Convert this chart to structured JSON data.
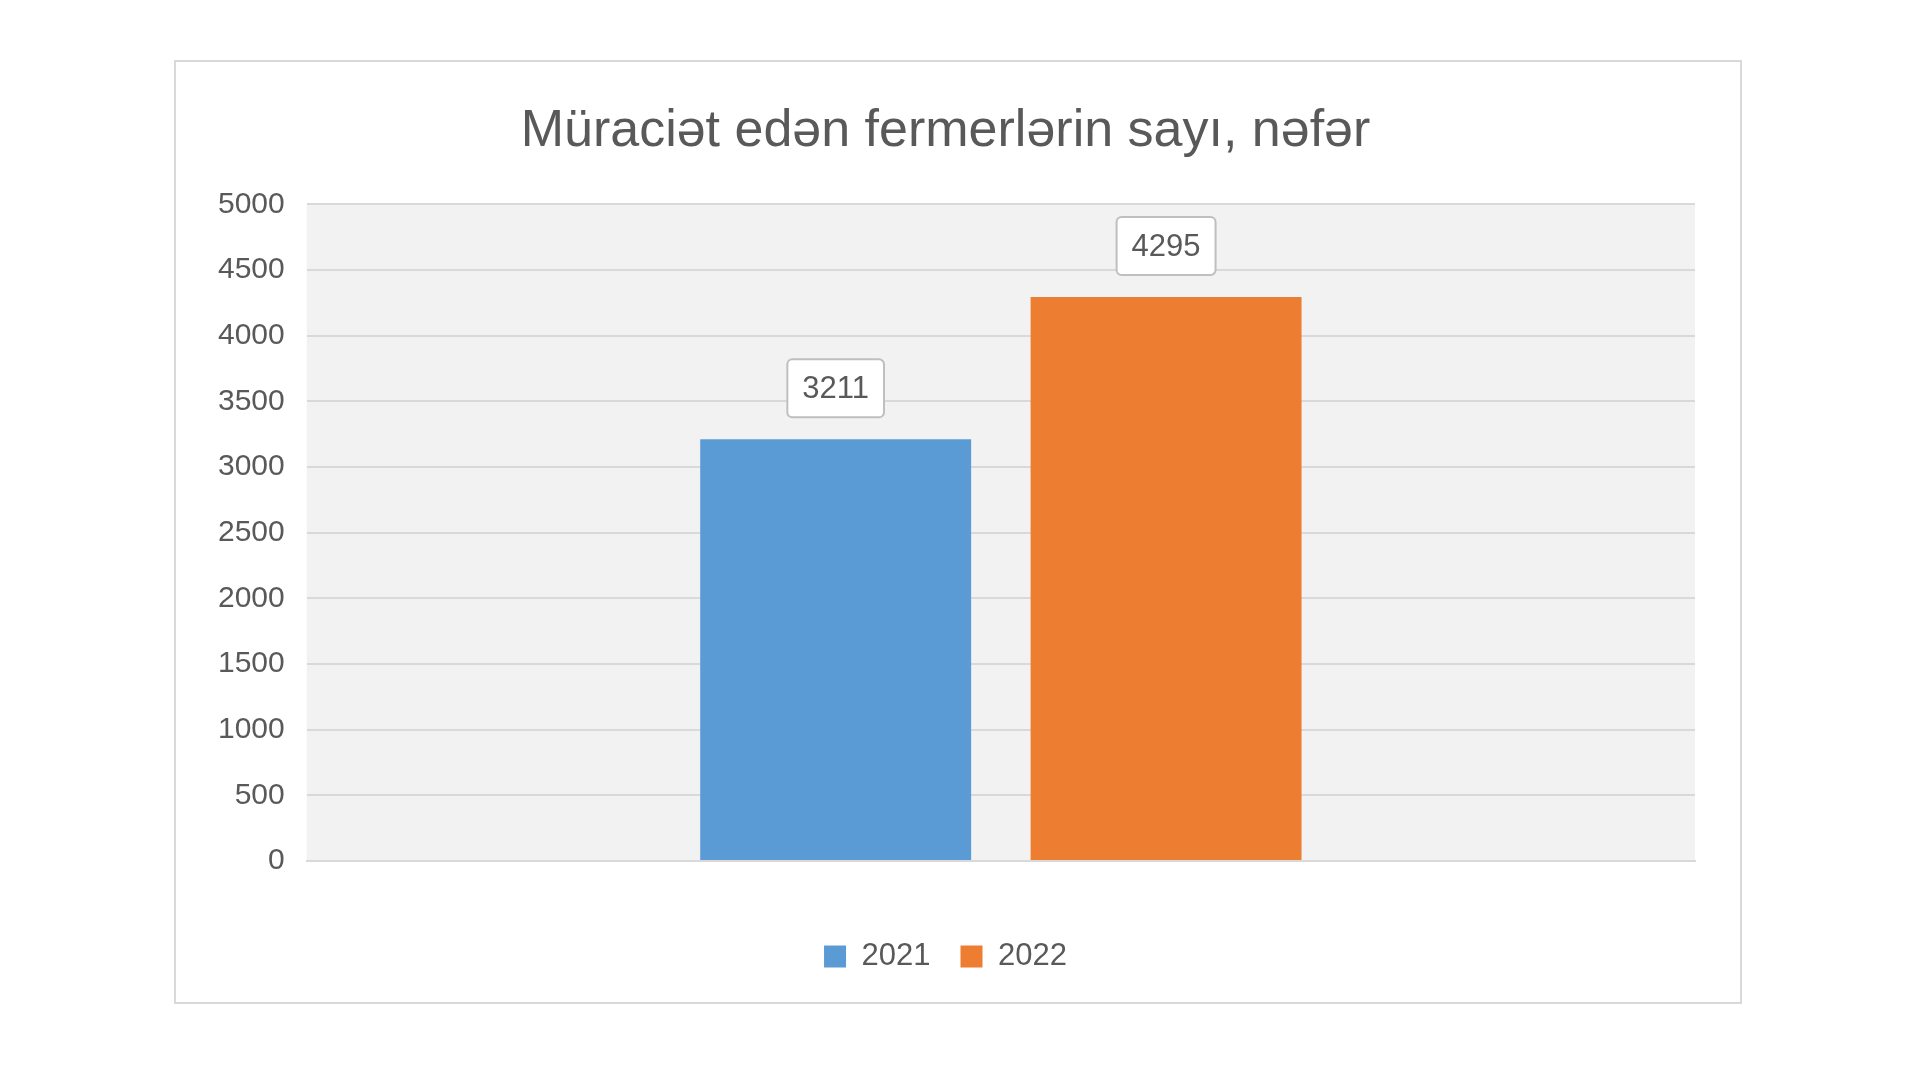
{
  "chart_data": {
    "type": "bar",
    "title": "Müraciət edən fermerlərin sayı, nəfər",
    "categories": [
      null
    ],
    "series": [
      {
        "name": "2021",
        "color": "#5b9bd5",
        "values": [
          3211
        ]
      },
      {
        "name": "2022",
        "color": "#ed7d31",
        "values": [
          4295
        ]
      }
    ],
    "ylim": [
      0,
      5000
    ],
    "yticks": [
      0,
      500,
      1000,
      1500,
      2000,
      2500,
      3000,
      3500,
      4000,
      4500,
      5000
    ],
    "grid": "y",
    "legend": "bottom",
    "data_labels": true
  }
}
